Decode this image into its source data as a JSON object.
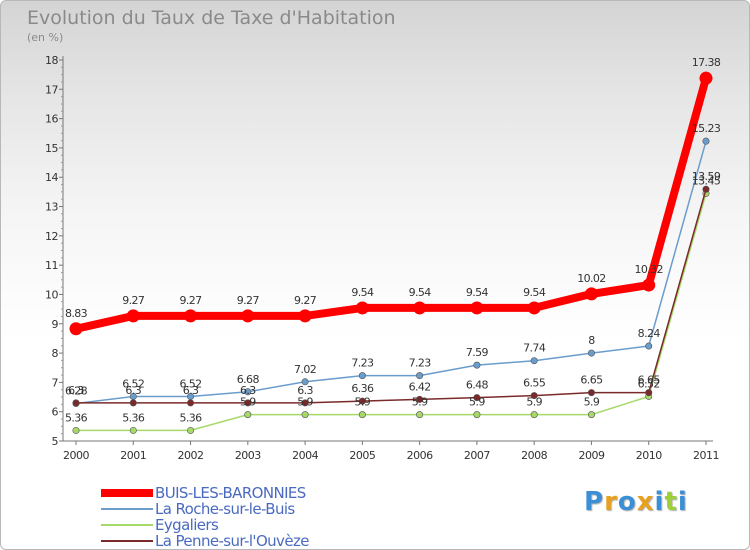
{
  "chart_data": {
    "type": "line",
    "title": "Evolution du Taux de Taxe d'Habitation",
    "unit_label": "(en %)",
    "xlabel": "",
    "ylabel": "",
    "categories": [
      "2000",
      "2001",
      "2002",
      "2003",
      "2004",
      "2005",
      "2006",
      "2007",
      "2008",
      "2009",
      "2010",
      "2011"
    ],
    "yticks": [
      5,
      6,
      7,
      8,
      9,
      10,
      11,
      12,
      13,
      14,
      15,
      16,
      17,
      18
    ],
    "ylim": [
      5,
      18
    ],
    "grid": false,
    "legend_position": "bottom-left",
    "series": [
      {
        "name": "BUIS-LES-BARONNIES",
        "color": "#ff0000",
        "values": [
          8.83,
          9.27,
          9.27,
          9.27,
          9.27,
          9.54,
          9.54,
          9.54,
          9.54,
          10.02,
          10.32,
          17.38
        ],
        "labels": [
          "8.83",
          "9.27",
          "9.27",
          "9.27",
          "9.27",
          "9.54",
          "9.54",
          "9.54",
          "9.54",
          "10.02",
          "10.32",
          "17.38"
        ]
      },
      {
        "name": "La Roche-sur-le-Buis",
        "color": "#6a9ccc",
        "values": [
          6.28,
          6.52,
          6.52,
          6.68,
          7.02,
          7.23,
          7.23,
          7.59,
          7.74,
          8.0,
          8.24,
          15.23
        ],
        "labels": [
          "6.28",
          "6.52",
          "6.52",
          "6.68",
          "7.02",
          "7.23",
          "7.23",
          "7.59",
          "7.74",
          "8",
          "8.24",
          "15.23"
        ]
      },
      {
        "name": "Eygaliers",
        "color": "#a6d96a",
        "values": [
          5.36,
          5.36,
          5.36,
          5.9,
          5.9,
          5.9,
          5.9,
          5.9,
          5.9,
          5.9,
          6.52,
          13.45
        ],
        "labels": [
          "5.36",
          "5.36",
          "5.36",
          "5.9",
          "5.9",
          "5.9",
          "5.9",
          "5.9",
          "5.9",
          "5.9",
          "6.52",
          "13.45"
        ]
      },
      {
        "name": "La Penne-sur-l'Ouvèze",
        "color": "#7a2a2a",
        "values": [
          6.3,
          6.3,
          6.3,
          6.3,
          6.3,
          6.36,
          6.42,
          6.48,
          6.55,
          6.65,
          6.65,
          13.59
        ],
        "labels": [
          "6.3",
          "6.3",
          "6.3",
          "6.3",
          "6.3",
          "6.36",
          "6.42",
          "6.48",
          "6.55",
          "6.65",
          "6.65",
          "13.59"
        ]
      }
    ]
  },
  "legend": {
    "items": [
      "BUIS-LES-BARONNIES",
      "La Roche-sur-le-Buis",
      "Eygaliers",
      "La Penne-sur-l'Ouvèze"
    ]
  },
  "brand": {
    "letters": [
      "P",
      "r",
      "o",
      "x",
      "i",
      "t",
      "i"
    ],
    "colors": [
      "#3a8fd6",
      "#e8a020",
      "#3a8fd6",
      "#e8a020",
      "#3a8fd6",
      "#9ccf3a",
      "#3a8fd6"
    ]
  }
}
